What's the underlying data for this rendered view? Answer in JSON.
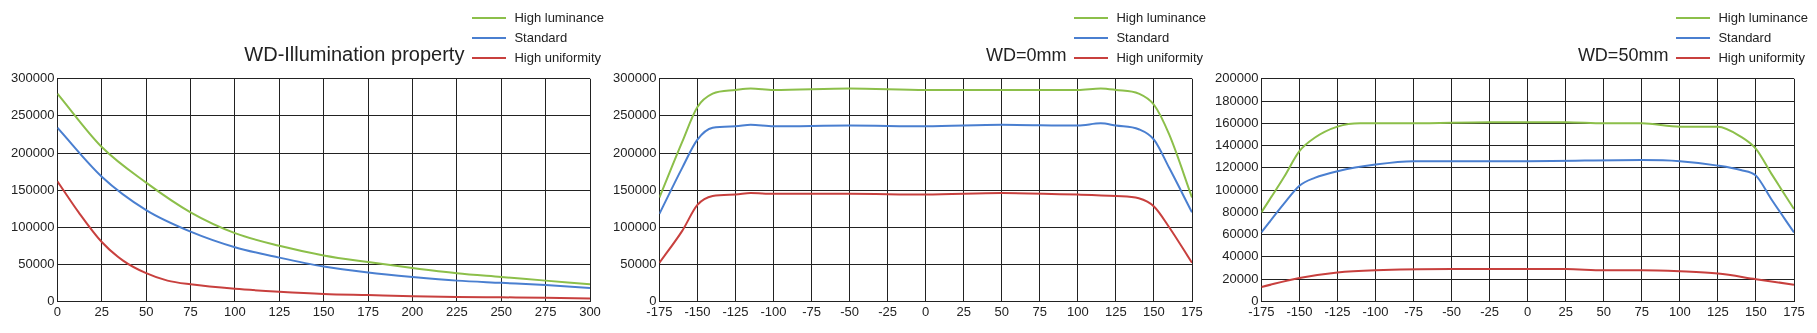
{
  "chart_data": [
    {
      "type": "line",
      "title": "WD-Illumination property",
      "legend": "top right",
      "grid": true,
      "xlim": [
        0,
        300
      ],
      "xticks": [
        0,
        25,
        50,
        75,
        100,
        125,
        150,
        175,
        200,
        225,
        250,
        275,
        300
      ],
      "ylim": [
        0,
        300000
      ],
      "yticks": [
        0,
        50000,
        100000,
        150000,
        200000,
        250000,
        300000
      ],
      "series": [
        {
          "name": "High luminance",
          "color": "#8cbf4a",
          "x": [
            0,
            25,
            50,
            75,
            100,
            125,
            150,
            175,
            200,
            225,
            250,
            275,
            300
          ],
          "values": [
            280000,
            208000,
            160000,
            120000,
            92000,
            75000,
            62000,
            53000,
            45000,
            38000,
            33000,
            28000,
            23000
          ]
        },
        {
          "name": "Standard",
          "color": "#4a7fd0",
          "x": [
            0,
            25,
            50,
            75,
            100,
            125,
            150,
            175,
            200,
            225,
            250,
            275,
            300
          ],
          "values": [
            234000,
            168000,
            123000,
            94000,
            73000,
            59000,
            47000,
            39000,
            33000,
            28000,
            25000,
            22000,
            18000
          ]
        },
        {
          "name": "High uniformity",
          "color": "#c8403e",
          "x": [
            0,
            12,
            25,
            37,
            50,
            62,
            75,
            100,
            125,
            150,
            175,
            200,
            225,
            250,
            275,
            300
          ],
          "values": [
            162000,
            120000,
            80000,
            55000,
            38000,
            28000,
            23000,
            17000,
            13000,
            10000,
            8500,
            7000,
            6000,
            5500,
            5000,
            4000
          ]
        }
      ]
    },
    {
      "type": "line",
      "title": "WD=0mm",
      "legend": "top right",
      "grid": true,
      "xlim": [
        -175,
        175
      ],
      "xticks": [
        -175,
        -150,
        -125,
        -100,
        -75,
        -50,
        -25,
        0,
        25,
        50,
        75,
        100,
        125,
        150,
        175
      ],
      "ylim": [
        0,
        300000
      ],
      "yticks": [
        0,
        50000,
        100000,
        150000,
        200000,
        250000,
        300000
      ],
      "series": [
        {
          "name": "High luminance",
          "color": "#8cbf4a",
          "x": [
            -175,
            -160,
            -150,
            -140,
            -125,
            -115,
            -100,
            -50,
            0,
            50,
            100,
            115,
            125,
            140,
            150,
            160,
            175
          ],
          "values": [
            140000,
            215000,
            262000,
            280000,
            285000,
            287000,
            285000,
            287000,
            285000,
            285000,
            285000,
            287000,
            285000,
            280000,
            265000,
            225000,
            140000
          ]
        },
        {
          "name": "Standard",
          "color": "#4a7fd0",
          "x": [
            -175,
            -160,
            -150,
            -140,
            -125,
            -115,
            -100,
            -50,
            0,
            50,
            100,
            115,
            125,
            140,
            150,
            160,
            175
          ],
          "values": [
            118000,
            180000,
            218000,
            234000,
            236000,
            238000,
            236000,
            237000,
            236000,
            238000,
            237000,
            240000,
            237000,
            232000,
            218000,
            180000,
            120000
          ]
        },
        {
          "name": "High uniformity",
          "color": "#c8403e",
          "x": [
            -175,
            -160,
            -150,
            -140,
            -125,
            -115,
            -100,
            -50,
            0,
            50,
            100,
            125,
            140,
            150,
            160,
            175
          ],
          "values": [
            52000,
            95000,
            130000,
            142000,
            144000,
            146000,
            145000,
            145000,
            144000,
            146000,
            144000,
            142000,
            139000,
            128000,
            100000,
            52000
          ]
        }
      ]
    },
    {
      "type": "line",
      "title": "WD=50mm",
      "legend": "top right",
      "grid": true,
      "xlim": [
        -175,
        175
      ],
      "xticks": [
        -175,
        -150,
        -125,
        -100,
        -75,
        -50,
        -25,
        0,
        25,
        50,
        75,
        100,
        125,
        150,
        175
      ],
      "ylim": [
        0,
        200000
      ],
      "yticks": [
        0,
        20000,
        40000,
        60000,
        80000,
        100000,
        120000,
        140000,
        160000,
        180000,
        200000
      ],
      "series": [
        {
          "name": "High luminance",
          "color": "#8cbf4a",
          "x": [
            -175,
            -160,
            -150,
            -140,
            -125,
            -110,
            -75,
            -25,
            25,
            50,
            75,
            100,
            125,
            140,
            150,
            160,
            175
          ],
          "values": [
            80000,
            112000,
            135000,
            147000,
            157000,
            160000,
            160000,
            161000,
            161000,
            160000,
            160000,
            157000,
            157000,
            148000,
            137000,
            115000,
            83000
          ]
        },
        {
          "name": "Standard",
          "color": "#4a7fd0",
          "x": [
            -175,
            -160,
            -150,
            -140,
            -125,
            -100,
            -75,
            0,
            75,
            100,
            125,
            140,
            150,
            160,
            175
          ],
          "values": [
            62000,
            88000,
            104000,
            111000,
            117000,
            123000,
            126000,
            126000,
            127000,
            126000,
            122000,
            118000,
            113000,
            92000,
            62000
          ]
        },
        {
          "name": "High uniformity",
          "color": "#c8403e",
          "x": [
            -175,
            -150,
            -125,
            -100,
            -50,
            0,
            25,
            50,
            75,
            100,
            125,
            150,
            175
          ],
          "values": [
            13000,
            21000,
            26000,
            28000,
            29000,
            29000,
            29000,
            28000,
            28000,
            27000,
            25000,
            20000,
            15000
          ]
        }
      ]
    }
  ]
}
